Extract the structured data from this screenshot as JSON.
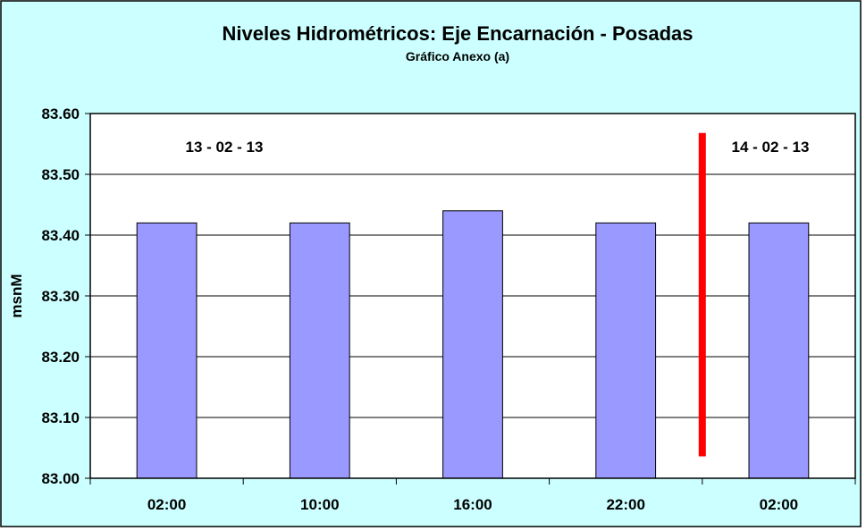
{
  "colors": {
    "chart_background": "#ccffff",
    "plot_background": "#ffffff",
    "bar_fill": "#9999ff",
    "bar_stroke": "#000000",
    "divider_line": "#ff0000",
    "border": "#000000"
  },
  "chart_data": {
    "type": "bar",
    "title": "Niveles Hidrométricos: Eje Encarnación - Posadas",
    "subtitle": "Gráfico Anexo (a)",
    "xlabel": "",
    "ylabel": "msnM",
    "categories": [
      "02:00",
      "10:00",
      "16:00",
      "22:00",
      "02:00"
    ],
    "values": [
      83.42,
      83.42,
      83.44,
      83.42,
      83.42
    ],
    "ylim": [
      83.0,
      83.6
    ],
    "yticks": [
      "83.00",
      "83.10",
      "83.20",
      "83.30",
      "83.40",
      "83.50",
      "83.60"
    ],
    "grid": true,
    "legend": "none",
    "annotations": [
      {
        "text": "13 - 02 - 13"
      },
      {
        "text": "14 - 02 - 13"
      }
    ],
    "date_divider": {
      "between_categories": [
        3,
        4
      ],
      "from": 83.036,
      "to": 83.568
    }
  }
}
